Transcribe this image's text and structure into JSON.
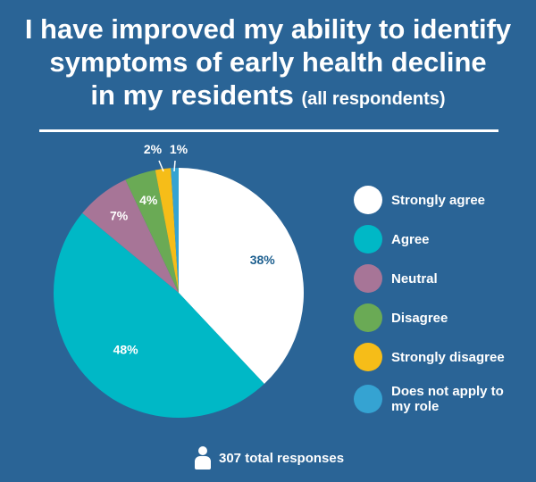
{
  "title": {
    "line1": "I have improved my ability to identify",
    "line2": "symptoms of early health decline",
    "line3_main": "in my residents",
    "line3_sub": "(all respondents)"
  },
  "footer": {
    "text": "307 total responses",
    "icon": "person-icon"
  },
  "chart_data": {
    "type": "pie",
    "title": "I have improved my ability to identify symptoms of early health decline in my residents (all respondents)",
    "legend_position": "right",
    "slices": [
      {
        "label": "Strongly agree",
        "value": 38,
        "display": "38%",
        "color": "#ffffff",
        "label_color": "#1d5f8f"
      },
      {
        "label": "Agree",
        "value": 48,
        "display": "48%",
        "color": "#00b8c6",
        "label_color": "#ffffff"
      },
      {
        "label": "Neutral",
        "value": 7,
        "display": "7%",
        "color": "#a77597",
        "label_color": "#ffffff"
      },
      {
        "label": "Disagree",
        "value": 4,
        "display": "4%",
        "color": "#6aaa55",
        "label_color": "#ffffff"
      },
      {
        "label": "Strongly disagree",
        "value": 2,
        "display": "2%",
        "color": "#f6bd18",
        "label_color": "#ffffff"
      },
      {
        "label": "Does not apply to my role",
        "value": 1,
        "display": "1%",
        "color": "#35a3d2",
        "label_color": "#ffffff"
      }
    ]
  }
}
